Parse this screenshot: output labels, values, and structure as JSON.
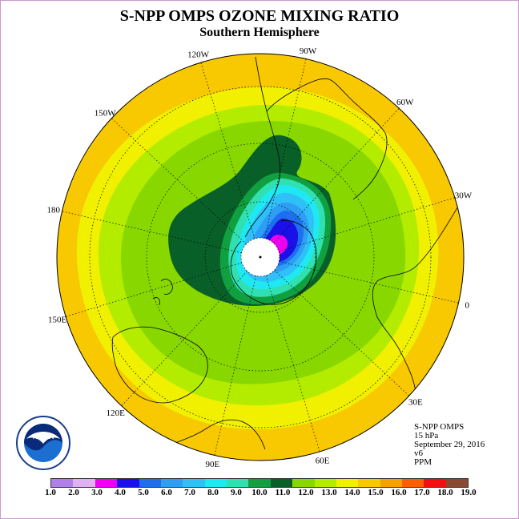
{
  "title": "S-NPP OMPS OZONE MIXING RATIO",
  "subtitle": "Southern Hemisphere",
  "longitude_labels": [
    {
      "text": "90W",
      "lon": -90
    },
    {
      "text": "60W",
      "lon": -60
    },
    {
      "text": "30W",
      "lon": -30
    },
    {
      "text": "0",
      "lon": 0
    },
    {
      "text": "30E",
      "lon": 30
    },
    {
      "text": "60E",
      "lon": 60
    },
    {
      "text": "90E",
      "lon": 90
    },
    {
      "text": "120E",
      "lon": 120
    },
    {
      "text": "150E",
      "lon": 150
    },
    {
      "text": "180",
      "lon": 180
    },
    {
      "text": "150W",
      "lon": -150
    },
    {
      "text": "120W",
      "lon": -120
    }
  ],
  "info": {
    "instrument": "S-NPP OMPS",
    "level": "15 hPa",
    "date": "September 29, 2016",
    "version": "v6",
    "units": "PPM"
  },
  "colorbar": {
    "labels": [
      "1.0",
      "2.0",
      "3.0",
      "4.0",
      "5.0",
      "6.0",
      "7.0",
      "8.0",
      "9.0",
      "10.0",
      "11.0",
      "12.0",
      "13.0",
      "14.0",
      "15.0",
      "16.0",
      "17.0",
      "18.0",
      "19.0"
    ],
    "colors": [
      "#b07fe8",
      "#e0b0f0",
      "#f000f0",
      "#1a10e8",
      "#1e6ff0",
      "#2c9ef4",
      "#30c0f8",
      "#20e8f0",
      "#30e0b0",
      "#10a040",
      "#086028",
      "#88d800",
      "#b4ec00",
      "#f0f000",
      "#f8c800",
      "#f8a000",
      "#f86000",
      "#f01010",
      "#8a4a30"
    ]
  },
  "logo_text": "NOAA"
}
